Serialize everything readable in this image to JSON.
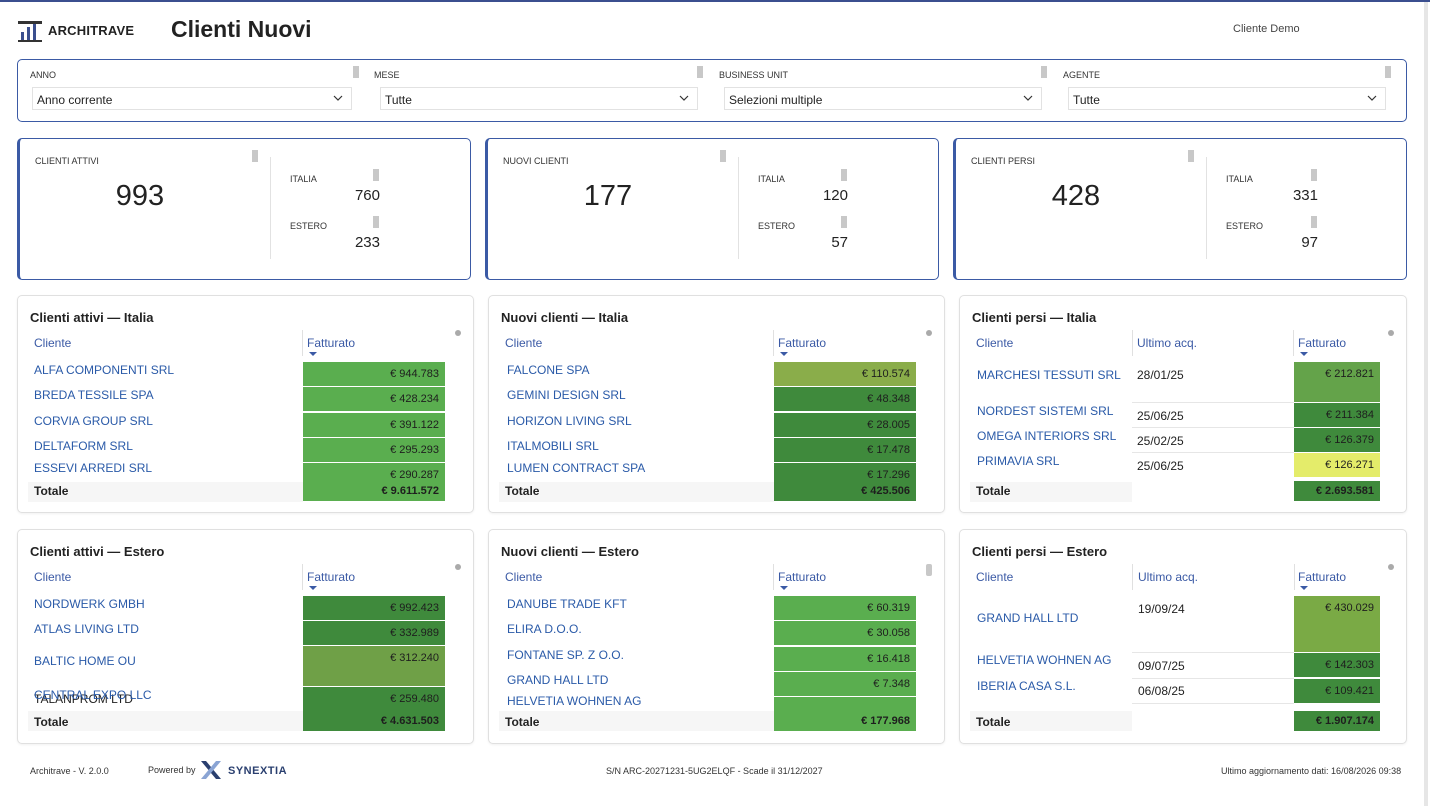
{
  "header": {
    "brand": "ARCHITRAVE",
    "title": "Clienti Nuovi",
    "client": "Cliente Demo"
  },
  "filters": [
    {
      "label": "ANNO",
      "value": "Anno corrente"
    },
    {
      "label": "MESE",
      "value": "Tutte"
    },
    {
      "label": "BUSINESS UNIT",
      "value": "Selezioni multiple"
    },
    {
      "label": "AGENTE",
      "value": "Tutte"
    }
  ],
  "kpis": [
    {
      "label": "CLIENTI ATTIVI",
      "value": "993",
      "italia_label": "ITALIA",
      "italia": "760",
      "estero_label": "ESTERO",
      "estero": "233"
    },
    {
      "label": "NUOVI CLIENTI",
      "value": "177",
      "italia_label": "ITALIA",
      "italia": "120",
      "estero_label": "ESTERO",
      "estero": "57"
    },
    {
      "label": "CLIENTI PERSI",
      "value": "428",
      "italia_label": "ITALIA",
      "italia": "331",
      "estero_label": "ESTERO",
      "estero": "97"
    }
  ],
  "tables": {
    "attivi_italia": {
      "title": "Clienti attivi — Italia",
      "col_cliente": "Cliente",
      "col_fatturato": "Fatturato",
      "rows": [
        {
          "cliente": "ALFA COMPONENTI SRL",
          "fatturato": "€ 944.783",
          "color": "#5aae4f"
        },
        {
          "cliente": "BREDA TESSILE SPA",
          "fatturato": "€ 428.234",
          "color": "#5aae4f"
        },
        {
          "cliente": "CORVIA GROUP SRL",
          "fatturato": "€ 391.122",
          "color": "#5aae4f"
        },
        {
          "cliente": "DELTAFORM SRL",
          "fatturato": "€ 295.293",
          "color": "#5aae4f"
        },
        {
          "cliente": "ESSEVI ARREDI SRL",
          "fatturato": "€ 290.287",
          "color": "#5aae4f"
        }
      ],
      "total_label": "Totale",
      "total": "€ 9.611.572",
      "total_color": "#5aae4f"
    },
    "nuovi_italia": {
      "title": "Nuovi clienti — Italia",
      "col_cliente": "Cliente",
      "col_fatturato": "Fatturato",
      "rows": [
        {
          "cliente": "FALCONE SPA",
          "fatturato": "€ 110.574",
          "color": "#8aad4a"
        },
        {
          "cliente": "GEMINI DESIGN SRL",
          "fatturato": "€ 48.348",
          "color": "#3f8a3c"
        },
        {
          "cliente": "HORIZON LIVING SRL",
          "fatturato": "€ 28.005",
          "color": "#3f8a3c"
        },
        {
          "cliente": "ITALMOBILI SRL",
          "fatturato": "€ 17.478",
          "color": "#3f8a3c"
        },
        {
          "cliente": "LUMEN CONTRACT SPA",
          "fatturato": "€ 17.296",
          "color": "#3f8a3c"
        }
      ],
      "total_label": "Totale",
      "total": "€ 425.506",
      "total_color": "#3f8a3c"
    },
    "persi_italia": {
      "title": "Clienti persi — Italia",
      "col_cliente": "Cliente",
      "col_ultimo": "Ultimo acq.",
      "col_fatturato": "Fatturato",
      "rows": [
        {
          "cliente": "MARCHESI TESSUTI SRL",
          "ultimo": "28/01/25",
          "fatturato": "€ 212.821",
          "color": "#64a34a"
        },
        {
          "cliente": "NORDEST SISTEMI SRL",
          "ultimo": "25/06/25",
          "fatturato": "€ 211.384",
          "color": "#3f8a3c"
        },
        {
          "cliente": "OMEGA INTERIORS SRL",
          "ultimo": "25/02/25",
          "fatturato": "€ 126.379",
          "color": "#3f8a3c"
        },
        {
          "cliente": "PRIMAVIA SRL",
          "ultimo": "25/06/25",
          "fatturato": "€ 126.271",
          "color": "#e4ec6a"
        }
      ],
      "total_label": "Totale",
      "total": "€ 2.693.581",
      "total_color": "#3f8a3c"
    },
    "attivi_estero": {
      "title": "Clienti attivi — Estero",
      "col_cliente": "Cliente",
      "col_fatturato": "Fatturato",
      "rows": [
        {
          "cliente": "NORDWERK GMBH",
          "fatturato": "€ 992.423",
          "color": "#3f8a3c"
        },
        {
          "cliente": "ATLAS LIVING LTD",
          "fatturato": "€ 332.989",
          "color": "#3f8a3c"
        },
        {
          "cliente": "BALTIC HOME OU",
          "fatturato": "€ 312.240",
          "color": "#6fa047"
        },
        {
          "cliente": "CENTRAL EXPO LLC",
          "fatturato": "€ 259.480",
          "color": "#3f8a3c"
        }
      ],
      "overlap_text": "TALANPROM LTD",
      "total_label": "Totale",
      "total": "€ 4.631.503",
      "total_color": "#3f8a3c"
    },
    "nuovi_estero": {
      "title": "Nuovi clienti — Estero",
      "col_cliente": "Cliente",
      "col_fatturato": "Fatturato",
      "rows": [
        {
          "cliente": "DANUBE TRADE KFT",
          "fatturato": "€ 60.319",
          "color": "#5aae4f"
        },
        {
          "cliente": "ELIRA D.O.O.",
          "fatturato": "€ 30.058",
          "color": "#5aae4f"
        },
        {
          "cliente": "FONTANE SP. Z O.O.",
          "fatturato": "€ 16.418",
          "color": "#5aae4f"
        },
        {
          "cliente": "GRAND HALL LTD",
          "fatturato": "€ 7.348",
          "color": "#5aae4f"
        },
        {
          "cliente": "HELVETIA WOHNEN AG",
          "fatturato": "",
          "color": "#5aae4f"
        }
      ],
      "total_label": "Totale",
      "total": "€ 177.968",
      "total_color": "#5aae4f"
    },
    "persi_estero": {
      "title": "Clienti persi — Estero",
      "col_cliente": "Cliente",
      "col_ultimo": "Ultimo acq.",
      "col_fatturato": "Fatturato",
      "rows": [
        {
          "cliente": "GRAND HALL LTD",
          "ultimo": "19/09/24",
          "fatturato": "€ 430.029",
          "color": "#7aaa45"
        },
        {
          "cliente": "HELVETIA WOHNEN AG",
          "ultimo": "09/07/25",
          "fatturato": "€ 142.303",
          "color": "#3f8a3c"
        },
        {
          "cliente": "IBERIA CASA S.L.",
          "ultimo": "06/08/25",
          "fatturato": "€ 109.421",
          "color": "#3f8a3c"
        }
      ],
      "total_label": "Totale",
      "total": "€ 1.907.174",
      "total_color": "#3f8a3c"
    }
  },
  "footer": {
    "version": "Architrave  -  V. 2.0.0",
    "powered_by": "Powered by",
    "synextia": "SYNEXTIA",
    "serial": "S/N ARC-20271231-5UG2ELQF  -  Scade il 31/12/2027",
    "last_update": "Ultimo aggiornamento dati:  16/08/2026 09:38"
  },
  "colors": {
    "accent": "#3b5aa5",
    "link": "#2a5aa8"
  }
}
